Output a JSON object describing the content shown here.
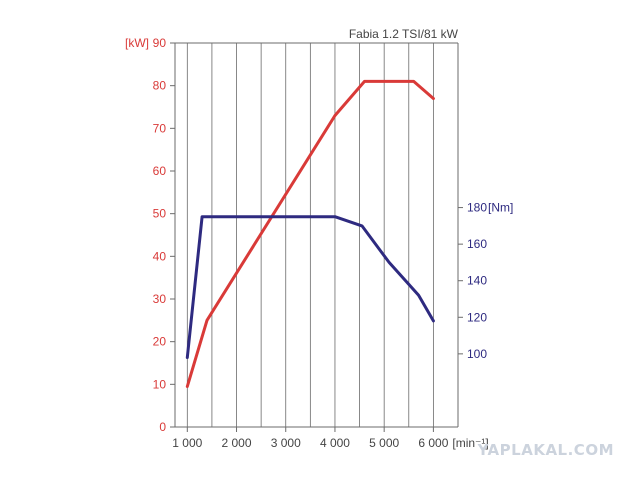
{
  "chart_data": {
    "type": "line",
    "title": "Fabia 1.2 TSI/81 kW",
    "x_unit": "[min⁻¹]",
    "left_unit": "[kW]",
    "right_unit": "[Nm]",
    "x_ticks": [
      "1 000",
      "2 000",
      "3 000",
      "4 000",
      "5 000",
      "6 000"
    ],
    "left_ticks": [
      0,
      10,
      20,
      30,
      40,
      50,
      60,
      70,
      80,
      90
    ],
    "right_ticks": [
      100,
      120,
      140,
      160,
      180
    ],
    "xlim": [
      750,
      6500
    ],
    "ylim_left": [
      0,
      90
    ],
    "ylim_right": [
      60,
      270
    ],
    "grid": "vertical",
    "series": [
      {
        "axis": "left",
        "color": "#d93a38",
        "x": [
          1000,
          1400,
          4000,
          4600,
          5600,
          6000
        ],
        "y": [
          9.5,
          25,
          73,
          81,
          81,
          77
        ]
      },
      {
        "axis": "right",
        "color": "#2e2a80",
        "x": [
          1000,
          1300,
          1400,
          4000,
          4550,
          5100,
          5700,
          6000
        ],
        "y": [
          98,
          175,
          175,
          175,
          170,
          150,
          132,
          118
        ]
      }
    ]
  },
  "watermark": "YAPLAKAL.COM"
}
